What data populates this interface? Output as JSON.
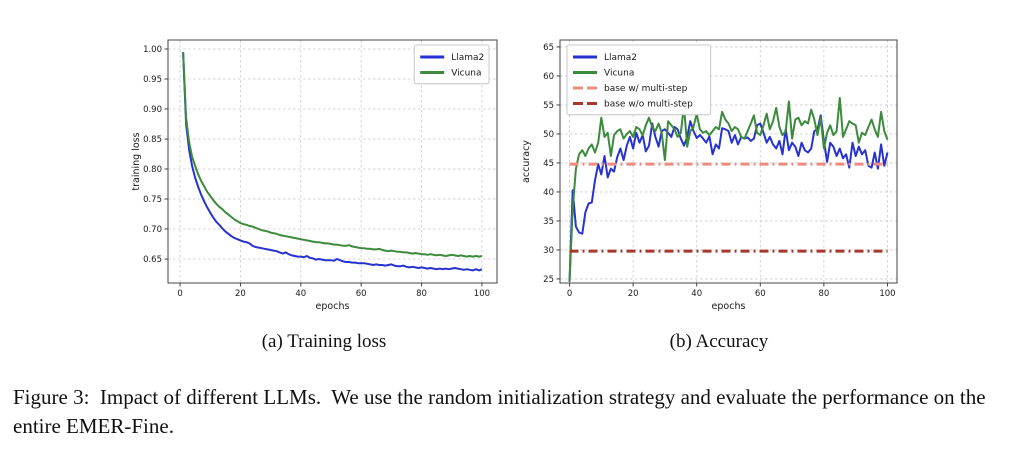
{
  "subcaptions": {
    "a": "(a) Training loss",
    "b": "(b) Accuracy"
  },
  "figure": {
    "caption": "Figure 3:  Impact of different LLMs.  We use the random initialization strategy and evaluate the performance on the entire EMER-Fine."
  },
  "colors": {
    "llama2": "#2633d0",
    "vicuna": "#3c8a3c",
    "base_with_multistep": "#ec8b81",
    "base_without_multistep": "#a5392f",
    "grid": "#c9c9c9",
    "frame": "#444444",
    "text": "#1a1a1a"
  },
  "chart_data": [
    {
      "type": "line",
      "title": "",
      "xlabel": "epochs",
      "ylabel": "training loss",
      "xlim": [
        -4,
        105
      ],
      "ylim": [
        0.61,
        1.015
      ],
      "grid": true,
      "legend_position": "top-right",
      "xticks": [
        0,
        20,
        40,
        60,
        80,
        100
      ],
      "xtick_labels": [
        "0",
        "20",
        "40",
        "60",
        "80",
        "100"
      ],
      "yticks": [
        0.65,
        0.7,
        0.75,
        0.8,
        0.85,
        0.9,
        0.95,
        1.0
      ],
      "ytick_labels": [
        "0.65",
        "0.70",
        "0.75",
        "0.80",
        "0.85",
        "0.90",
        "0.95",
        "1.00"
      ],
      "x": [
        1,
        2,
        3,
        4,
        5,
        6,
        7,
        8,
        9,
        10,
        11,
        12,
        13,
        14,
        15,
        16,
        17,
        18,
        19,
        20,
        21,
        22,
        23,
        24,
        25,
        26,
        27,
        28,
        29,
        30,
        31,
        32,
        33,
        34,
        35,
        36,
        37,
        38,
        39,
        40,
        41,
        42,
        43,
        44,
        45,
        46,
        47,
        48,
        49,
        50,
        51,
        52,
        53,
        54,
        55,
        56,
        57,
        58,
        59,
        60,
        61,
        62,
        63,
        64,
        65,
        66,
        67,
        68,
        69,
        70,
        71,
        72,
        73,
        74,
        75,
        76,
        77,
        78,
        79,
        80,
        81,
        82,
        83,
        84,
        85,
        86,
        87,
        88,
        89,
        90,
        91,
        92,
        93,
        94,
        95,
        96,
        97,
        98,
        99,
        100
      ],
      "series": [
        {
          "name": "Llama2",
          "color": "#2633d0",
          "style": "solid",
          "width": 2,
          "y": [
            0.995,
            0.875,
            0.832,
            0.805,
            0.785,
            0.77,
            0.757,
            0.746,
            0.736,
            0.727,
            0.719,
            0.712,
            0.707,
            0.701,
            0.696,
            0.692,
            0.688,
            0.685,
            0.683,
            0.681,
            0.679,
            0.678,
            0.676,
            0.672,
            0.67,
            0.669,
            0.668,
            0.667,
            0.666,
            0.665,
            0.664,
            0.663,
            0.661,
            0.659,
            0.661,
            0.658,
            0.656,
            0.655,
            0.654,
            0.654,
            0.653,
            0.655,
            0.652,
            0.651,
            0.649,
            0.65,
            0.649,
            0.648,
            0.648,
            0.648,
            0.647,
            0.65,
            0.648,
            0.646,
            0.645,
            0.645,
            0.644,
            0.644,
            0.643,
            0.643,
            0.643,
            0.642,
            0.641,
            0.64,
            0.641,
            0.64,
            0.64,
            0.639,
            0.64,
            0.641,
            0.639,
            0.638,
            0.638,
            0.639,
            0.637,
            0.636,
            0.637,
            0.636,
            0.635,
            0.636,
            0.635,
            0.634,
            0.635,
            0.634,
            0.633,
            0.634,
            0.633,
            0.634,
            0.633,
            0.634,
            0.635,
            0.634,
            0.633,
            0.632,
            0.633,
            0.632,
            0.631,
            0.633,
            0.631,
            0.633
          ]
        },
        {
          "name": "Vicuna",
          "color": "#3c8a3c",
          "style": "solid",
          "width": 2,
          "y": [
            0.995,
            0.885,
            0.845,
            0.82,
            0.805,
            0.791,
            0.78,
            0.771,
            0.762,
            0.755,
            0.748,
            0.742,
            0.737,
            0.733,
            0.728,
            0.724,
            0.72,
            0.716,
            0.713,
            0.71,
            0.708,
            0.707,
            0.705,
            0.704,
            0.702,
            0.7,
            0.698,
            0.697,
            0.696,
            0.694,
            0.693,
            0.692,
            0.69,
            0.689,
            0.688,
            0.687,
            0.686,
            0.685,
            0.684,
            0.683,
            0.682,
            0.681,
            0.68,
            0.679,
            0.678,
            0.678,
            0.677,
            0.676,
            0.676,
            0.675,
            0.674,
            0.674,
            0.673,
            0.672,
            0.672,
            0.673,
            0.671,
            0.67,
            0.669,
            0.668,
            0.668,
            0.667,
            0.667,
            0.666,
            0.666,
            0.667,
            0.665,
            0.664,
            0.663,
            0.664,
            0.663,
            0.662,
            0.662,
            0.661,
            0.661,
            0.66,
            0.659,
            0.66,
            0.659,
            0.658,
            0.658,
            0.657,
            0.658,
            0.657,
            0.656,
            0.657,
            0.656,
            0.655,
            0.656,
            0.657,
            0.656,
            0.655,
            0.656,
            0.655,
            0.654,
            0.655,
            0.654,
            0.655,
            0.654,
            0.655
          ]
        }
      ]
    },
    {
      "type": "line",
      "title": "",
      "xlabel": "epochs",
      "ylabel": "accuracy",
      "xlim": [
        -3,
        103
      ],
      "ylim": [
        24.3,
        66.2
      ],
      "grid": true,
      "legend_position": "top-left",
      "xticks": [
        0,
        20,
        40,
        60,
        80,
        100
      ],
      "xtick_labels": [
        "0",
        "20",
        "40",
        "60",
        "80",
        "100"
      ],
      "yticks": [
        25,
        30,
        35,
        40,
        45,
        50,
        55,
        60,
        65
      ],
      "ytick_labels": [
        "25",
        "30",
        "35",
        "40",
        "45",
        "50",
        "55",
        "60",
        "65"
      ],
      "x": [
        0,
        1,
        2,
        3,
        4,
        5,
        6,
        7,
        8,
        9,
        10,
        11,
        12,
        13,
        14,
        15,
        16,
        17,
        18,
        19,
        20,
        21,
        22,
        23,
        24,
        25,
        26,
        27,
        28,
        29,
        30,
        31,
        32,
        33,
        34,
        35,
        36,
        37,
        38,
        39,
        40,
        41,
        42,
        43,
        44,
        45,
        46,
        47,
        48,
        49,
        50,
        51,
        52,
        53,
        54,
        55,
        56,
        57,
        58,
        59,
        60,
        61,
        62,
        63,
        64,
        65,
        66,
        67,
        68,
        69,
        70,
        71,
        72,
        73,
        74,
        75,
        76,
        77,
        78,
        79,
        80,
        81,
        82,
        83,
        84,
        85,
        86,
        87,
        88,
        89,
        90,
        91,
        92,
        93,
        94,
        95,
        96,
        97,
        98,
        99,
        100
      ],
      "series": [
        {
          "name": "Llama2",
          "color": "#2633d0",
          "style": "solid",
          "width": 2,
          "y": [
            24.5,
            40.3,
            34.0,
            33.0,
            32.8,
            36.5,
            38.0,
            38.2,
            42.0,
            44.8,
            43.0,
            46.2,
            42.5,
            44.0,
            43.5,
            46.0,
            47.5,
            45.5,
            48.0,
            49.5,
            47.5,
            50.2,
            48.5,
            49.8,
            47.0,
            48.0,
            51.8,
            49.5,
            47.8,
            50.5,
            50.8,
            50.2,
            49.5,
            51.2,
            50.8,
            49.2,
            48.0,
            49.5,
            52.2,
            50.5,
            49.3,
            49.8,
            49.2,
            48.5,
            49.6,
            46.5,
            48.2,
            47.5,
            51.0,
            50.8,
            50.5,
            48.5,
            49.8,
            48.2,
            49.5,
            49.2,
            49.4,
            48.8,
            49.2,
            51.5,
            51.8,
            50.2,
            48.5,
            49.5,
            48.2,
            47.5,
            48.8,
            46.5,
            50.8,
            47.2,
            48.5,
            47.8,
            46.2,
            48.5,
            47.2,
            46.8,
            47.5,
            50.5,
            50.8,
            53.2,
            48.8,
            45.2,
            48.5,
            47.8,
            46.2,
            47.5,
            45.8,
            46.5,
            44.2,
            48.5,
            46.2,
            47.8,
            46.5,
            47.2,
            44.5,
            44.2,
            46.8,
            44.0,
            48.2,
            44.5,
            46.8
          ]
        },
        {
          "name": "Vicuna",
          "color": "#3c8a3c",
          "style": "solid",
          "width": 2,
          "y": [
            24.5,
            37.0,
            44.0,
            46.5,
            47.2,
            46.2,
            47.5,
            48.2,
            46.8,
            48.5,
            52.8,
            49.5,
            50.2,
            46.2,
            49.8,
            50.5,
            50.8,
            49.2,
            50.0,
            50.5,
            49.5,
            51.2,
            50.8,
            49.8,
            51.5,
            52.8,
            51.2,
            50.5,
            51.8,
            50.2,
            45.5,
            52.2,
            51.5,
            50.8,
            49.5,
            50.2,
            54.8,
            47.8,
            50.5,
            51.2,
            53.5,
            50.8,
            50.2,
            50.5,
            49.8,
            50.5,
            51.2,
            50.8,
            53.8,
            52.5,
            51.8,
            50.5,
            51.2,
            50.8,
            49.5,
            49.2,
            50.5,
            51.8,
            53.2,
            50.2,
            49.8,
            51.5,
            53.5,
            50.8,
            52.2,
            54.5,
            51.2,
            49.8,
            50.5,
            55.6,
            49.2,
            52.5,
            52.8,
            51.5,
            52.2,
            51.8,
            54.2,
            52.5,
            49.8,
            52.8,
            47.5,
            50.2,
            51.5,
            49.8,
            50.5,
            56.2,
            49.5,
            50.8,
            52.2,
            51.8,
            51.5,
            48.5,
            50.2,
            49.8,
            51.2,
            52.5,
            50.8,
            49.5,
            53.8,
            50.5,
            49.0
          ]
        },
        {
          "name": "base w/ multi-step",
          "color": "#ec8b81",
          "style": "dashdot",
          "width": 3,
          "x": [
            0,
            100
          ],
          "y": [
            44.8,
            44.8
          ]
        },
        {
          "name": "base w/o multi-step",
          "color": "#a5392f",
          "style": "dashdot",
          "width": 3,
          "x": [
            0,
            100
          ],
          "y": [
            29.8,
            29.8
          ]
        }
      ]
    }
  ]
}
